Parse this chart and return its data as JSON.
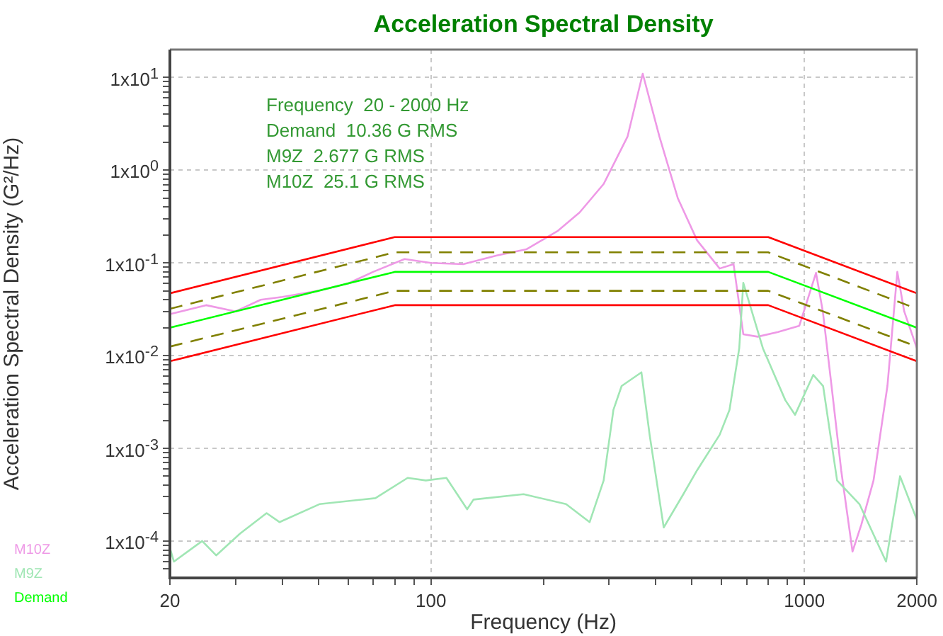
{
  "chart_data": {
    "type": "line",
    "title": "Acceleration Spectral Density",
    "xlabel": "Frequency (Hz)",
    "ylabel": "Acceleration Spectral Density (G²/Hz)",
    "annotations": [
      "Frequency  20 - 2000 Hz",
      "Demand  10.36 G RMS",
      "M9Z  2.677 G RMS",
      "M10Z  25.1 G RMS"
    ],
    "log": "xy",
    "grid": true,
    "legend": "bottom left",
    "marker": "none",
    "xlim": [
      20,
      2000
    ],
    "ylim": [
      4e-05,
      20
    ],
    "xticks": [
      20,
      {
        "value": 30,
        "label": null
      },
      {
        "value": 40,
        "label": null
      },
      {
        "value": 50,
        "label": null
      },
      {
        "value": 60,
        "label": null
      },
      {
        "value": 70,
        "label": null
      },
      {
        "value": 80,
        "label": null
      },
      {
        "value": 90,
        "label": null
      },
      100,
      {
        "value": 200,
        "label": null
      },
      {
        "value": 300,
        "label": null
      },
      {
        "value": 400,
        "label": null
      },
      {
        "value": 500,
        "label": null
      },
      {
        "value": 600,
        "label": null
      },
      {
        "value": 700,
        "label": null
      },
      {
        "value": 800,
        "label": null
      },
      {
        "value": 900,
        "label": null
      },
      1000,
      2000
    ],
    "yticks": [
      {
        "value": 5e-05,
        "label": null
      },
      {
        "value": 6e-05,
        "label": null
      },
      {
        "value": 7e-05,
        "label": null
      },
      {
        "value": 8e-05,
        "label": null
      },
      {
        "value": 9e-05,
        "label": null
      },
      {
        "value": 0.0001,
        "label": "1x10$^{-4}$"
      },
      {
        "value": 0.0002,
        "label": null
      },
      {
        "value": 0.0003,
        "label": null
      },
      {
        "value": 0.0004,
        "label": null
      },
      {
        "value": 0.0005,
        "label": null
      },
      {
        "value": 0.0006,
        "label": null
      },
      {
        "value": 0.0007,
        "label": null
      },
      {
        "value": 0.0008,
        "label": null
      },
      {
        "value": 0.0009,
        "label": null
      },
      {
        "value": 0.001,
        "label": "1x10$^{-3}$"
      },
      {
        "value": 0.002,
        "label": null
      },
      {
        "value": 0.003,
        "label": null
      },
      {
        "value": 0.004,
        "label": null
      },
      {
        "value": 0.005,
        "label": null
      },
      {
        "value": 0.006,
        "label": null
      },
      {
        "value": 0.007,
        "label": null
      },
      {
        "value": 0.008,
        "label": null
      },
      {
        "value": 0.009,
        "label": null
      },
      {
        "value": 0.01,
        "label": "1x10$^{-2}$"
      },
      {
        "value": 0.02,
        "label": null
      },
      {
        "value": 0.03,
        "label": null
      },
      {
        "value": 0.04,
        "label": null
      },
      {
        "value": 0.05,
        "label": null
      },
      {
        "value": 0.06,
        "label": null
      },
      {
        "value": 0.07,
        "label": null
      },
      {
        "value": 0.08,
        "label": null
      },
      {
        "value": 0.09,
        "label": null
      },
      {
        "value": 0.1,
        "label": "1x10$^{-1}$"
      },
      {
        "value": 0.2,
        "label": null
      },
      {
        "value": 0.3,
        "label": null
      },
      {
        "value": 0.4,
        "label": null
      },
      {
        "value": 0.5,
        "label": null
      },
      {
        "value": 0.6,
        "label": null
      },
      {
        "value": 0.7,
        "label": null
      },
      {
        "value": 0.8,
        "label": null
      },
      {
        "value": 0.9,
        "label": null
      },
      {
        "value": 1,
        "label": "1x10$^{0}$"
      },
      {
        "value": 2,
        "label": null
      },
      {
        "value": 3,
        "label": null
      },
      {
        "value": 4,
        "label": null
      },
      {
        "value": 5,
        "label": null
      },
      {
        "value": 6,
        "label": null
      },
      {
        "value": 7,
        "label": null
      },
      {
        "value": 8,
        "label": null
      },
      {
        "value": 9,
        "label": null
      },
      {
        "value": 10,
        "label": "1x10$^{1}$"
      }
    ],
    "series": [
      {
        "color": "#ff0000",
        "x": [
          20,
          80,
          800,
          2000
        ],
        "values": [
          0.047,
          0.19,
          0.19,
          0.047
        ]
      },
      {
        "color": "#808000",
        "line_style": "dashed",
        "x": [
          20,
          80,
          800,
          2000
        ],
        "values": [
          0.032,
          0.13,
          0.13,
          0.032
        ]
      },
      {
        "color": "#808000",
        "line_style": "dashed",
        "x": [
          20,
          80,
          800,
          2000
        ],
        "values": [
          0.0125,
          0.05,
          0.05,
          0.0125
        ]
      },
      {
        "color": "#ff0000",
        "x": [
          20,
          80,
          800,
          2000
        ],
        "values": [
          0.0087,
          0.035,
          0.035,
          0.0087
        ]
      },
      {
        "name": "Demand",
        "color": "#00ff00",
        "x": [
          20,
          80,
          800,
          2000
        ],
        "values": [
          0.02,
          0.08,
          0.08,
          0.02
        ]
      },
      {
        "name": "M9Z",
        "color": "#a0e6b4",
        "x": [
          20,
          20.5,
          24.4,
          26.6,
          30.8,
          36.3,
          39.3,
          50.3,
          71,
          86.6,
          96.9,
          110,
          125,
          130,
          177,
          230,
          266,
          290,
          308,
          324,
          366,
          385,
          420,
          474,
          516,
          593,
          630,
          669,
          686,
          774,
          889,
          944,
          1056,
          1122,
          1223,
          1404,
          1654,
          1803,
          2000
        ],
        "values": [
          8.4e-05,
          6e-05,
          0.0001,
          7e-05,
          0.00012,
          0.0002,
          0.00016,
          0.00025,
          0.00029,
          0.00048,
          0.00045,
          0.00048,
          0.00022,
          0.00028,
          0.00032,
          0.00025,
          0.00016,
          0.00045,
          0.0026,
          0.0047,
          0.0066,
          0.0014,
          0.00014,
          0.00032,
          0.00058,
          0.0014,
          0.0026,
          0.012,
          0.061,
          0.012,
          0.0033,
          0.0023,
          0.0062,
          0.0047,
          0.00045,
          0.00025,
          6e-05,
          0.0005,
          0.00017
        ]
      },
      {
        "name": "M10Z",
        "color": "#ee99e6",
        "x": [
          20,
          25,
          30,
          35,
          40,
          50,
          60,
          70,
          85,
          100,
          122,
          150,
          180,
          218,
          250,
          290,
          336,
          369,
          409,
          458,
          516,
          593,
          646,
          686,
          750,
          850,
          969,
          1074,
          1120,
          1182,
          1255,
          1345,
          1420,
          1531,
          1668,
          1773,
          1850,
          2000
        ],
        "values": [
          0.028,
          0.035,
          0.03,
          0.04,
          0.043,
          0.05,
          0.06,
          0.08,
          0.11,
          0.1,
          0.097,
          0.12,
          0.14,
          0.22,
          0.35,
          0.71,
          2.3,
          11,
          2.3,
          0.5,
          0.175,
          0.087,
          0.097,
          0.017,
          0.016,
          0.018,
          0.021,
          0.078,
          0.03,
          0.0047,
          0.00057,
          7.7e-05,
          0.00015,
          0.00045,
          0.0047,
          0.08,
          0.03,
          0.012
        ]
      }
    ]
  }
}
